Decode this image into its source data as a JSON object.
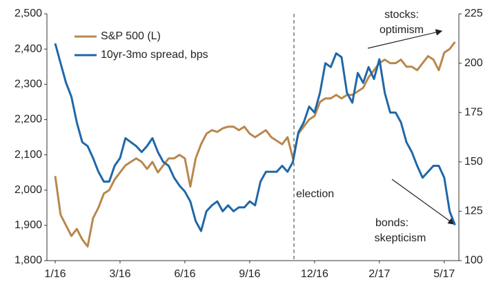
{
  "chart_data": {
    "type": "line",
    "categories": [
      "1/16",
      null,
      null,
      null,
      null,
      null,
      null,
      null,
      null,
      null,
      null,
      null,
      "3/16",
      null,
      null,
      null,
      null,
      null,
      null,
      null,
      null,
      null,
      null,
      null,
      "6/16",
      null,
      null,
      null,
      null,
      null,
      null,
      null,
      null,
      null,
      null,
      null,
      "9/16",
      null,
      null,
      null,
      null,
      null,
      null,
      null,
      null,
      null,
      null,
      null,
      "12/16",
      null,
      null,
      null,
      null,
      null,
      null,
      null,
      null,
      null,
      null,
      null,
      "2/17",
      null,
      null,
      null,
      null,
      null,
      null,
      null,
      null,
      null,
      null,
      null,
      "5/17",
      null,
      null
    ],
    "series": [
      {
        "name": "S&P 500 (L)",
        "color": "#b8874c",
        "axis": "y",
        "values": [
          2040,
          1930,
          1900,
          1870,
          1890,
          1860,
          1840,
          1920,
          1950,
          1990,
          2000,
          2030,
          2050,
          2070,
          2080,
          2090,
          2080,
          2060,
          2080,
          2050,
          2070,
          2090,
          2090,
          2100,
          2090,
          2010,
          2090,
          2130,
          2160,
          2170,
          2165,
          2175,
          2180,
          2180,
          2170,
          2180,
          2160,
          2150,
          2160,
          2170,
          2150,
          2140,
          2130,
          2150,
          2090,
          2160,
          2180,
          2200,
          2210,
          2250,
          2260,
          2260,
          2270,
          2260,
          2270,
          2270,
          2280,
          2290,
          2320,
          2340,
          2360,
          2370,
          2360,
          2360,
          2370,
          2350,
          2350,
          2340,
          2360,
          2380,
          2370,
          2340,
          2390,
          2400,
          2420
        ]
      },
      {
        "name": "10yr-3mo spread, bps",
        "color": "#1f67a8",
        "axis": "y2",
        "values": [
          210,
          200,
          190,
          183,
          170,
          160,
          158,
          152,
          145,
          140,
          140,
          148,
          152,
          162,
          160,
          158,
          155,
          158,
          162,
          155,
          150,
          148,
          142,
          138,
          135,
          130,
          120,
          115,
          125,
          128,
          130,
          125,
          128,
          125,
          127,
          127,
          130,
          128,
          140,
          145,
          145,
          145,
          148,
          145,
          150,
          165,
          170,
          178,
          175,
          185,
          200,
          198,
          205,
          203,
          185,
          180,
          195,
          190,
          198,
          192,
          202,
          185,
          175,
          175,
          170,
          160,
          155,
          148,
          142,
          145,
          148,
          148,
          142,
          125,
          118
        ]
      }
    ],
    "ylim": [
      1800,
      2500
    ],
    "yticks": [
      {
        "value": 1800,
        "label": "1,800"
      },
      {
        "value": 1900,
        "label": "1,900"
      },
      {
        "value": 2000,
        "label": "2,000"
      },
      {
        "value": 2100,
        "label": "2,100"
      },
      {
        "value": 2200,
        "label": "2,200"
      },
      {
        "value": 2300,
        "label": "2,300"
      },
      {
        "value": 2400,
        "label": "2,400"
      },
      {
        "value": 2500,
        "label": "2,500"
      }
    ],
    "y2lim": [
      100,
      225
    ],
    "y2ticks": [
      100,
      125,
      150,
      175,
      200,
      225
    ],
    "annotations": [
      "stocks:",
      "optimism",
      "election",
      "bonds:",
      "skepticism"
    ],
    "grid": false
  }
}
